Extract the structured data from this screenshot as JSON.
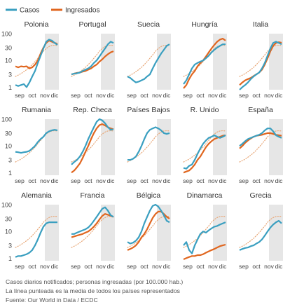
{
  "legend": {
    "items": [
      {
        "label": "Casos",
        "color": "#3a9fc0"
      },
      {
        "label": "Ingresados",
        "color": "#e0661f"
      }
    ]
  },
  "chart_data": {
    "type": "line",
    "scale": "log",
    "y_ticks": [
      1,
      3,
      10,
      30,
      100
    ],
    "y_tick_labels": [
      "1",
      "3",
      "10",
      "30",
      "100"
    ],
    "x_ticks": [
      "sep",
      "oct",
      "nov",
      "dic"
    ],
    "highlight_band": {
      "from": "nov",
      "to": "dic",
      "color": "#e6e6e6"
    },
    "colors": {
      "casos": "#3a9fc0",
      "ingresados": "#e0661f",
      "media": "#e8a777"
    },
    "panels": [
      {
        "title": "Polonia",
        "casos": [
          1.2,
          1.1,
          1.2,
          1.3,
          1.0,
          1.5,
          2.5,
          4,
          8,
          15,
          28,
          50,
          60,
          55,
          45,
          38
        ],
        "ingresados": [
          6,
          5.5,
          6,
          5.8,
          6,
          5,
          5.5,
          7,
          10,
          18,
          30,
          45,
          55,
          50,
          45,
          42
        ]
      },
      {
        "title": "Portugal",
        "casos": [
          3,
          3.2,
          3.3,
          3.5,
          4,
          4.5,
          5,
          6,
          8,
          10,
          14,
          20,
          28,
          40,
          50,
          45
        ],
        "ingresados": [
          3,
          3.2,
          3.4,
          3.5,
          3.8,
          4,
          4.5,
          5,
          6,
          7,
          9,
          11,
          14,
          17,
          20,
          22
        ]
      },
      {
        "title": "Suecia",
        "casos": [
          2.5,
          2.2,
          1.8,
          1.5,
          1.6,
          1.8,
          2,
          2.5,
          3,
          5,
          8,
          12,
          18,
          25,
          35,
          40
        ],
        "ingresados": []
      },
      {
        "title": "Hungría",
        "casos": [
          1.3,
          1.8,
          3,
          5,
          7,
          8,
          9,
          10,
          12,
          15,
          20,
          25,
          30,
          35,
          40,
          40
        ],
        "ingresados": [
          0.9,
          1.2,
          2,
          3,
          4,
          6,
          8,
          10,
          14,
          20,
          28,
          38,
          50,
          60,
          65,
          55
        ]
      },
      {
        "title": "Italia",
        "casos": [
          0.8,
          1,
          1.2,
          1.5,
          2,
          2.5,
          3,
          3.5,
          5,
          8,
          15,
          28,
          45,
          50,
          45,
          40
        ],
        "ingresados": [
          1.2,
          1.5,
          1.8,
          2,
          2.2,
          2.6,
          3,
          3.5,
          4.5,
          7,
          12,
          22,
          35,
          45,
          48,
          46
        ]
      },
      {
        "title": "Rumania",
        "casos": [
          6,
          5.8,
          5.5,
          5.8,
          6,
          6.5,
          8,
          10,
          14,
          18,
          22,
          30,
          35,
          38,
          40,
          38
        ],
        "ingresados": []
      },
      {
        "title": "Rep. Checa",
        "casos": [
          2,
          2.5,
          3,
          4,
          6,
          10,
          18,
          30,
          50,
          80,
          100,
          90,
          70,
          50,
          40,
          42
        ],
        "ingresados": [
          1,
          1.2,
          1.6,
          2.2,
          3.5,
          6,
          10,
          18,
          30,
          45,
          60,
          65,
          58,
          50,
          45,
          42
        ]
      },
      {
        "title": "Países Bajos",
        "casos": [
          3,
          3,
          3.3,
          4,
          6,
          10,
          18,
          30,
          40,
          45,
          50,
          45,
          38,
          30,
          28,
          30
        ],
        "ingresados": []
      },
      {
        "title": "R. Unido",
        "casos": [
          1.5,
          1.4,
          1.8,
          2,
          3,
          5,
          8,
          12,
          16,
          20,
          22,
          25,
          22,
          20,
          22,
          25
        ],
        "ingresados": [
          1,
          1.1,
          1.2,
          1.5,
          2,
          3,
          4,
          6,
          9,
          12,
          15,
          18,
          20,
          22,
          24,
          25
        ]
      },
      {
        "title": "España",
        "casos": [
          10,
          12,
          15,
          18,
          20,
          22,
          24,
          26,
          30,
          38,
          45,
          45,
          35,
          25,
          22,
          20
        ],
        "ingresados": [
          8,
          10,
          13,
          16,
          19,
          22,
          24,
          25,
          26,
          28,
          30,
          30,
          28,
          26,
          25,
          24
        ]
      },
      {
        "title": "Alemania",
        "casos": [
          1.1,
          1.2,
          1.2,
          1.3,
          1.4,
          1.6,
          2,
          3,
          5,
          9,
          15,
          20,
          22,
          22,
          22,
          22
        ],
        "ingresados": []
      },
      {
        "title": "Francia",
        "casos": [
          8,
          8,
          9,
          10,
          11,
          12,
          14,
          18,
          25,
          35,
          50,
          70,
          80,
          60,
          40,
          35
        ],
        "ingresados": [
          6,
          6.5,
          7,
          7.5,
          8,
          9,
          10,
          12,
          15,
          20,
          28,
          38,
          45,
          42,
          38,
          35
        ]
      },
      {
        "title": "Bélgica",
        "casos": [
          4,
          3.5,
          3.8,
          4.5,
          6,
          10,
          20,
          35,
          60,
          90,
          100,
          85,
          60,
          40,
          25,
          22
        ],
        "ingresados": [
          2,
          2.2,
          2.5,
          3,
          4,
          6,
          8,
          12,
          20,
          32,
          45,
          55,
          55,
          45,
          35,
          30
        ]
      },
      {
        "title": "Dinamarca",
        "casos": [
          3,
          4,
          2,
          1.5,
          3,
          5,
          8,
          10,
          9,
          11,
          13,
          15,
          16,
          18,
          20,
          22
        ],
        "ingresados": [
          0.9,
          1,
          1.1,
          1.2,
          1.2,
          1.3,
          1.3,
          1.4,
          1.6,
          1.8,
          2,
          2.2,
          2.5,
          2.8,
          3,
          3.2
        ]
      },
      {
        "title": "Grecia",
        "casos": [
          2,
          2.2,
          2.4,
          2.5,
          2.8,
          3,
          3.5,
          4,
          5,
          7,
          10,
          14,
          18,
          22,
          25,
          20
        ],
        "ingresados": []
      }
    ],
    "media": [
      2.5,
      2.8,
      3.2,
      3.8,
      4.5,
      5.5,
      7,
      9,
      12,
      16,
      22,
      28,
      33,
      36,
      37,
      36
    ]
  },
  "footnotes": {
    "line1": "Casos diarios notificados; personas ingresadas (por 100.000 hab.)",
    "line2": "La línea punteada es la media de todos los países representados",
    "line3": "Fuente: Our World in Data / ECDC"
  }
}
